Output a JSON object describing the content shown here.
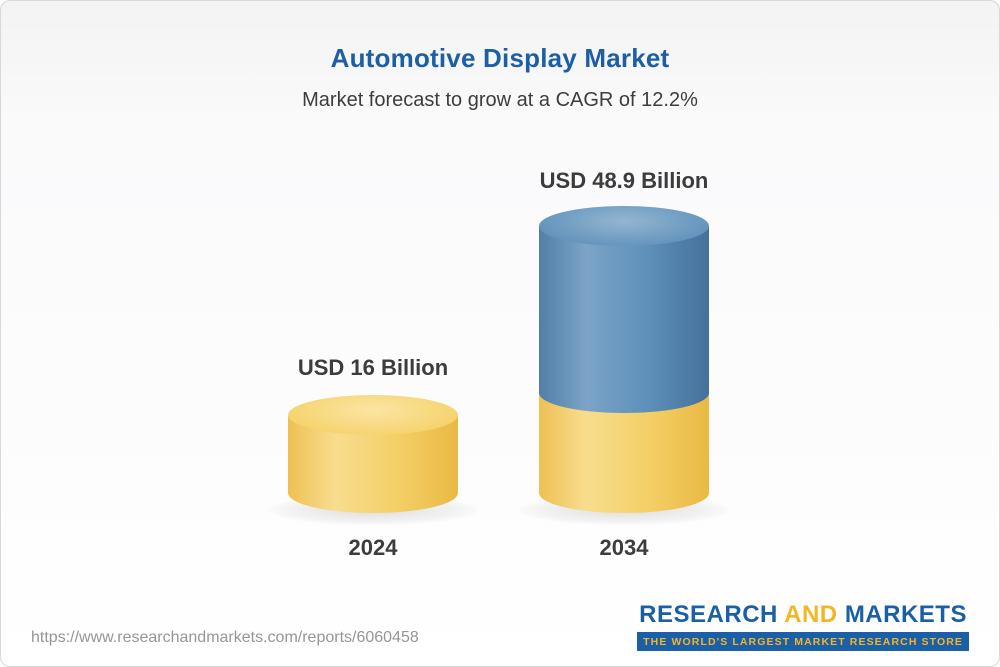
{
  "header": {
    "title": "Automotive Display Market",
    "subtitle": "Market forecast to grow at a CAGR of 12.2%"
  },
  "chart_data": {
    "type": "bar",
    "subtype": "3d-cylinder",
    "title": "Automotive Display Market",
    "subtitle": "Market forecast to grow at a CAGR of 12.2%",
    "cagr_percent": 12.2,
    "unit": "USD Billion",
    "categories": [
      "2024",
      "2034"
    ],
    "values": [
      16,
      48.9
    ],
    "value_labels": [
      "USD 16 Billion",
      "USD 48.9 Billion"
    ],
    "legend_position": "none",
    "grid": false,
    "colors": {
      "base_yellow": "#F2CA5E",
      "growth_blue": "#5B8DB8",
      "title_blue": "#1D5FA5",
      "text_dark": "#3C3C3C"
    },
    "notes": "2034 cylinder is stacked: yellow base equal to 2024 value with blue growth segment on top"
  },
  "footer": {
    "url": "https://www.researchandmarkets.com/reports/6060458",
    "logo": {
      "word1": "RESEARCH",
      "word2": "AND",
      "word3": "MARKETS",
      "tagline": "THE WORLD'S LARGEST MARKET RESEARCH STORE"
    }
  }
}
